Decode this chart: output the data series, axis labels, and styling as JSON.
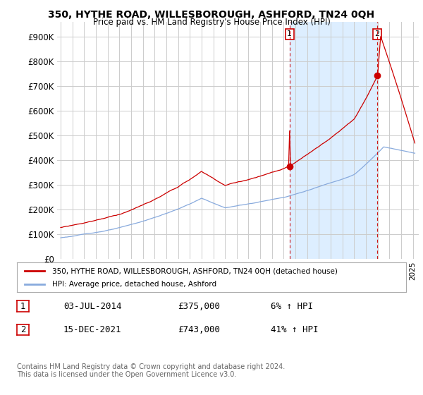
{
  "title": "350, HYTHE ROAD, WILLESBOROUGH, ASHFORD, TN24 0QH",
  "subtitle": "Price paid vs. HM Land Registry's House Price Index (HPI)",
  "ylabel_ticks": [
    "£0",
    "£100K",
    "£200K",
    "£300K",
    "£400K",
    "£500K",
    "£600K",
    "£700K",
    "£800K",
    "£900K"
  ],
  "ytick_values": [
    0,
    100000,
    200000,
    300000,
    400000,
    500000,
    600000,
    700000,
    800000,
    900000
  ],
  "ylim": [
    0,
    960000
  ],
  "xlim_start": 1994.7,
  "xlim_end": 2025.5,
  "sale1_x": 2014.5,
  "sale1_y": 375000,
  "sale1_label": "1",
  "sale2_x": 2021.96,
  "sale2_y": 743000,
  "sale2_label": "2",
  "red_line_color": "#cc0000",
  "blue_line_color": "#88aadd",
  "shade_color": "#ddeeff",
  "annotation_box_color": "#cc0000",
  "grid_color": "#cccccc",
  "background_color": "#ffffff",
  "legend_label1": "350, HYTHE ROAD, WILLESBOROUGH, ASHFORD, TN24 0QH (detached house)",
  "legend_label2": "HPI: Average price, detached house, Ashford",
  "footer1": "Contains HM Land Registry data © Crown copyright and database right 2024.",
  "footer2": "This data is licensed under the Open Government Licence v3.0.",
  "table_row1": [
    "1",
    "03-JUL-2014",
    "£375,000",
    "6% ↑ HPI"
  ],
  "table_row2": [
    "2",
    "15-DEC-2021",
    "£743,000",
    "41% ↑ HPI"
  ]
}
